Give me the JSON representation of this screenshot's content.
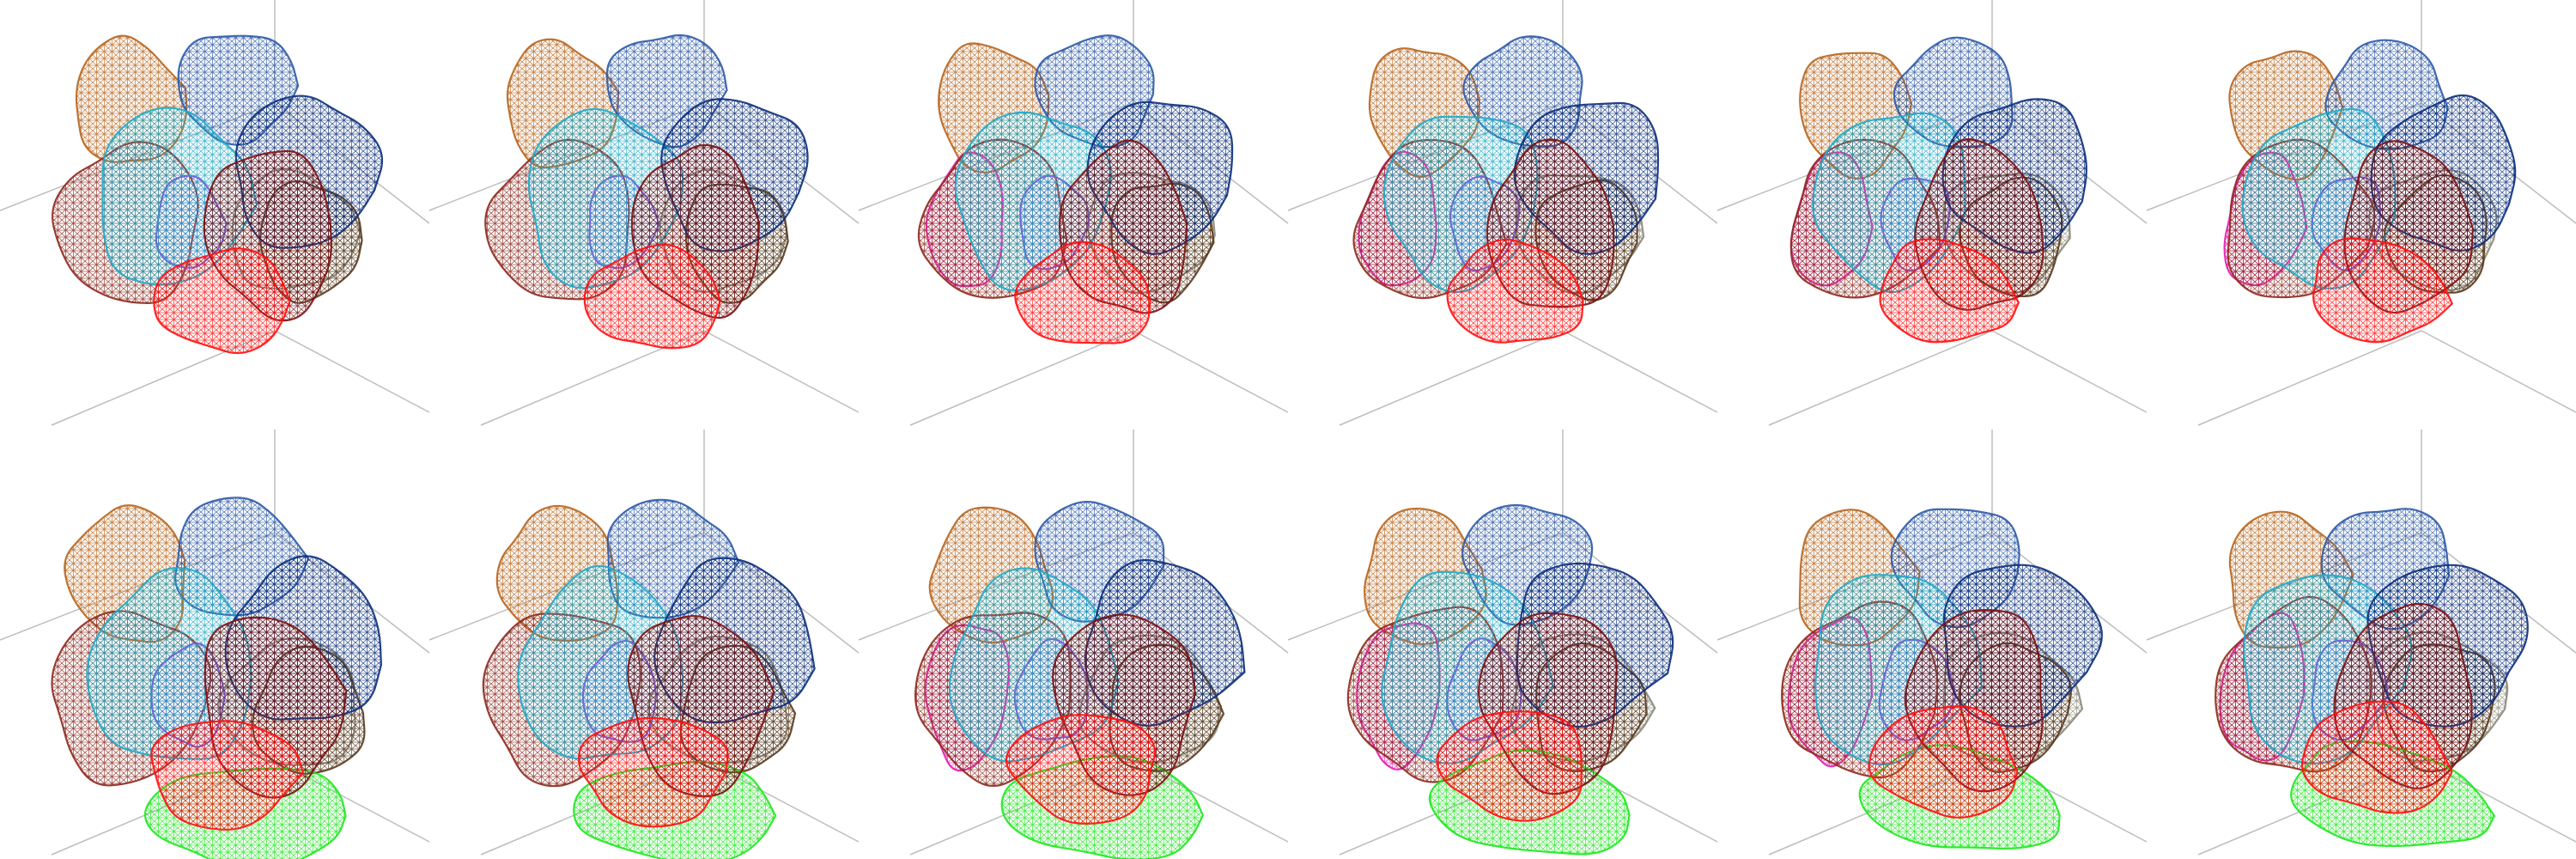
{
  "figure": {
    "layout": {
      "rows": 2,
      "cols": 6
    },
    "colors": {
      "axis": "#bdbdbd",
      "background": "#ffffff"
    },
    "blob_palette": [
      {
        "name": "orange-cell",
        "color": "#b8661e"
      },
      {
        "name": "blue-cell",
        "color": "#2d5aa8"
      },
      {
        "name": "navy-cell",
        "color": "#0c2f7d"
      },
      {
        "name": "cyan-cell",
        "color": "#22a9c6"
      },
      {
        "name": "brown-cell",
        "color": "#8e2a1f"
      },
      {
        "name": "darkred-cell",
        "color": "#7a1212"
      },
      {
        "name": "olive-cell",
        "color": "#5a3a1f"
      },
      {
        "name": "gray-cell",
        "color": "#8c8a7a"
      },
      {
        "name": "red-cell",
        "color": "#ff1010"
      },
      {
        "name": "magenta-cell",
        "color": "#e51eb0"
      },
      {
        "name": "purple-cell",
        "color": "#7a4ad6"
      },
      {
        "name": "green-cell",
        "color": "#1ee81e"
      }
    ],
    "panels": [
      {
        "id": "r1c1",
        "row": 1,
        "col": 1,
        "has_green": false,
        "has_magenta": false
      },
      {
        "id": "r1c2",
        "row": 1,
        "col": 2,
        "has_green": false,
        "has_magenta": false
      },
      {
        "id": "r1c3",
        "row": 1,
        "col": 3,
        "has_green": false,
        "has_magenta": true
      },
      {
        "id": "r1c4",
        "row": 1,
        "col": 4,
        "has_green": false,
        "has_magenta": true
      },
      {
        "id": "r1c5",
        "row": 1,
        "col": 5,
        "has_green": false,
        "has_magenta": true
      },
      {
        "id": "r1c6",
        "row": 1,
        "col": 6,
        "has_green": false,
        "has_magenta": true
      },
      {
        "id": "r2c1",
        "row": 2,
        "col": 1,
        "has_green": true,
        "has_magenta": false
      },
      {
        "id": "r2c2",
        "row": 2,
        "col": 2,
        "has_green": true,
        "has_magenta": false
      },
      {
        "id": "r2c3",
        "row": 2,
        "col": 3,
        "has_green": true,
        "has_magenta": true
      },
      {
        "id": "r2c4",
        "row": 2,
        "col": 4,
        "has_green": true,
        "has_magenta": true
      },
      {
        "id": "r2c5",
        "row": 2,
        "col": 5,
        "has_green": true,
        "has_magenta": true
      },
      {
        "id": "r2c6",
        "row": 2,
        "col": 6,
        "has_green": true,
        "has_magenta": true
      }
    ]
  }
}
